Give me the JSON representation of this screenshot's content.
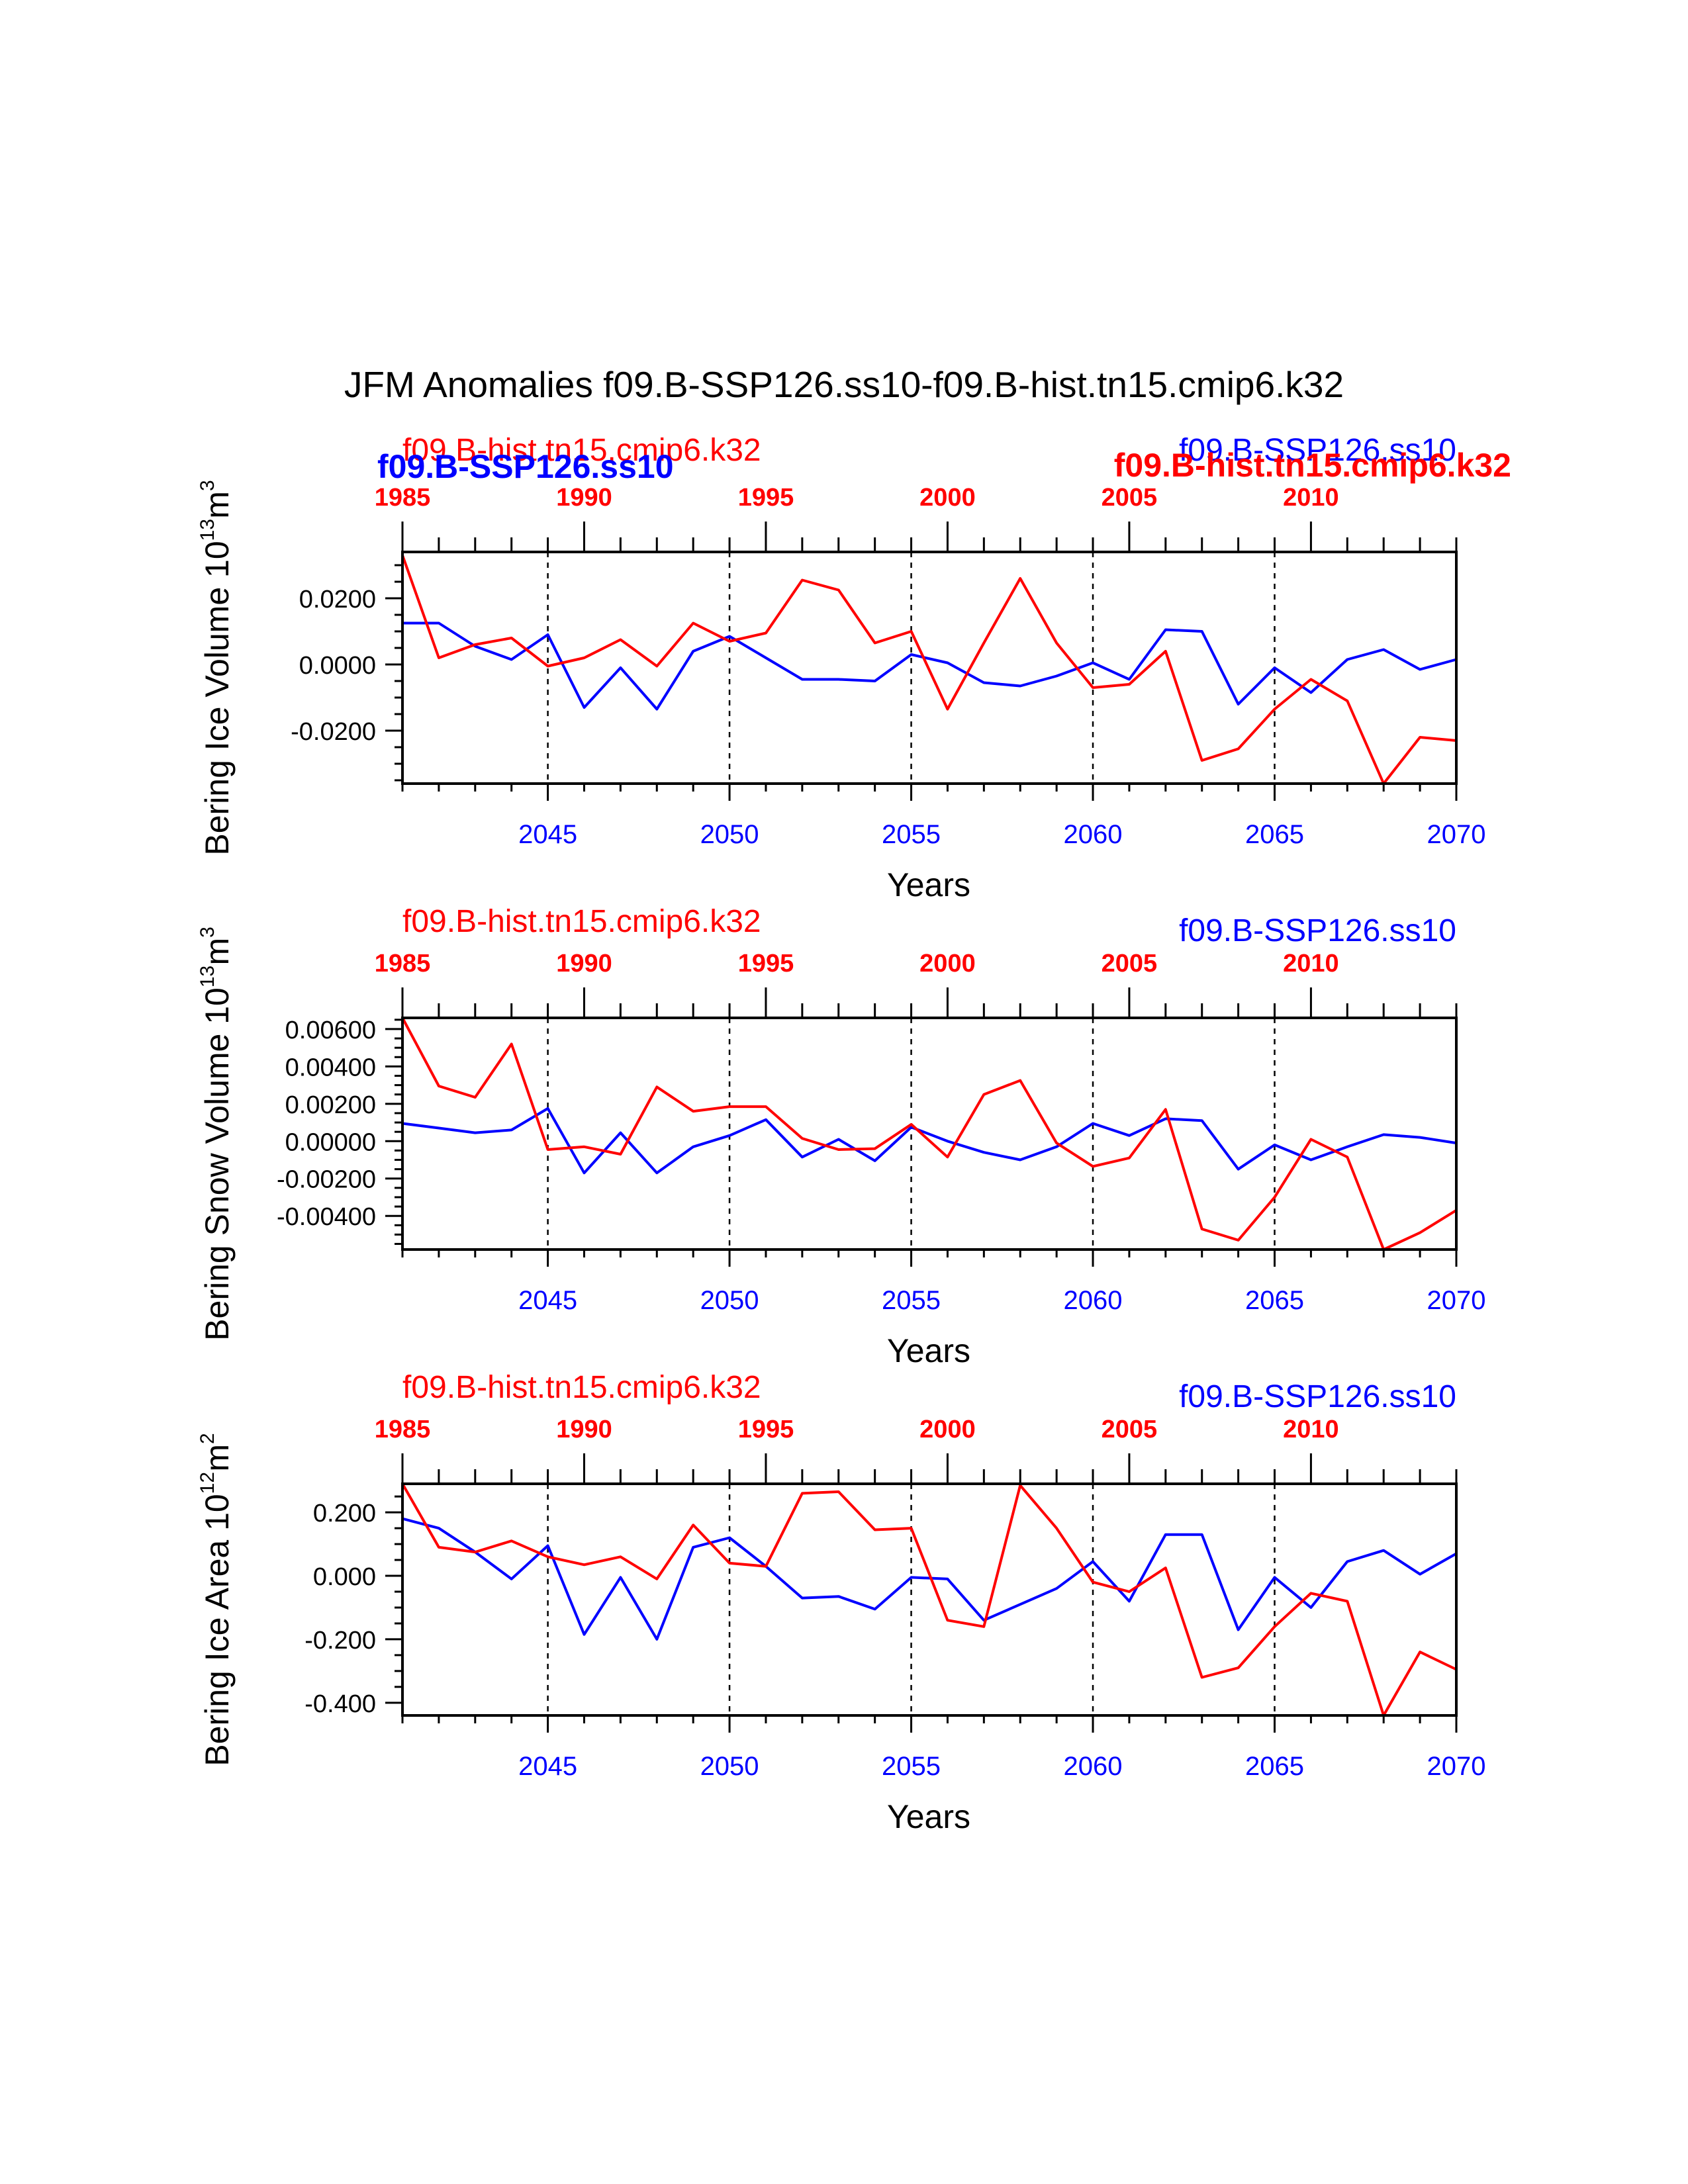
{
  "title": "JFM Anomalies f09.B-SSP126.ss10-f09.B-hist.tn15.cmip6.k32",
  "colors": {
    "ssp": "#0000ff",
    "hist": "#ff0000",
    "axis": "#000000"
  },
  "header_overlap": {
    "left_small": "f09.B-hist.tn15.cmip6.k32",
    "left_bold": "f09.B-SSP126.ss10",
    "right_small": "f09.B-SSP126.ss10",
    "right_bold": "f09.B-hist.tn15.cmip6.k32"
  },
  "chart_data": [
    {
      "type": "line",
      "ylabel": "Bering Ice Volume 10^13 m^3",
      "xlabel": "Years",
      "top_left_label": "f09.B-hist.tn15.cmip6.k32",
      "top_right_label": "f09.B-SSP126.ss10",
      "x_bottom": {
        "min": 2041,
        "max": 2070,
        "ticks": [
          "2045",
          "2050",
          "2055",
          "2060",
          "2065",
          "2070"
        ]
      },
      "x_top": {
        "min": 1985,
        "max": 2014,
        "ticks": [
          "1985",
          "1990",
          "1995",
          "2000",
          "2005",
          "2010"
        ]
      },
      "ylim": [
        -0.036,
        0.034
      ],
      "yticks": [
        "0.0200",
        "0.0000",
        "-0.0200"
      ],
      "ytick_values": [
        0.02,
        0.0,
        -0.02
      ],
      "series": [
        {
          "name": "f09.B-SSP126.ss10",
          "color": "#0000ff",
          "values": [
            0.0125,
            0.0125,
            0.0055,
            0.0015,
            0.009,
            -0.013,
            -0.001,
            -0.0135,
            0.004,
            0.0085,
            0.002,
            -0.0045,
            -0.0045,
            -0.005,
            0.003,
            0.0005,
            -0.0055,
            -0.0065,
            -0.0035,
            0.0005,
            -0.0045,
            0.0105,
            0.01,
            -0.012,
            -0.001,
            -0.0085,
            0.0015,
            0.0045,
            -0.0015,
            0.0015
          ]
        },
        {
          "name": "f09.B-hist.tn15.cmip6.k32",
          "color": "#ff0000",
          "values": [
            0.033,
            0.002,
            0.006,
            0.008,
            -0.0005,
            0.002,
            0.0075,
            -0.0005,
            0.0125,
            0.007,
            0.0095,
            0.0255,
            0.0225,
            0.0065,
            0.01,
            -0.0135,
            0.0065,
            0.026,
            0.0065,
            -0.007,
            -0.006,
            0.004,
            -0.029,
            -0.0255,
            -0.0135,
            -0.0045,
            -0.011,
            -0.036,
            -0.022,
            -0.023
          ]
        }
      ]
    },
    {
      "type": "line",
      "ylabel": "Bering Snow Volume 10^13 m^3",
      "xlabel": "Years",
      "top_left_label": "f09.B-hist.tn15.cmip6.k32",
      "top_right_label": "f09.B-SSP126.ss10",
      "x_bottom": {
        "min": 2041,
        "max": 2070,
        "ticks": [
          "2045",
          "2050",
          "2055",
          "2060",
          "2065",
          "2070"
        ]
      },
      "x_top": {
        "min": 1985,
        "max": 2014,
        "ticks": [
          "1985",
          "1990",
          "1995",
          "2000",
          "2005",
          "2010"
        ]
      },
      "ylim": [
        -0.0058,
        0.0066
      ],
      "yticks": [
        "0.00600",
        "0.00400",
        "0.00200",
        "0.00000",
        "-0.00200",
        "-0.00400"
      ],
      "ytick_values": [
        0.006,
        0.004,
        0.002,
        0.0,
        -0.002,
        -0.004
      ],
      "series": [
        {
          "name": "f09.B-SSP126.ss10",
          "color": "#0000ff",
          "values": [
            0.00095,
            0.0007,
            0.00045,
            0.0006,
            0.00175,
            -0.0017,
            0.00045,
            -0.0017,
            -0.0003,
            0.0003,
            0.00115,
            -0.00085,
            0.0001,
            -0.00105,
            0.00075,
            0.0,
            -0.0006,
            -0.001,
            -0.0003,
            0.00095,
            0.0003,
            0.0012,
            0.0011,
            -0.0015,
            -0.0002,
            -0.001,
            -0.0003,
            0.00035,
            0.0002,
            -0.0001
          ]
        },
        {
          "name": "f09.B-hist.tn15.cmip6.k32",
          "color": "#ff0000",
          "values": [
            0.0066,
            0.00295,
            0.00235,
            0.0052,
            -0.00045,
            -0.0003,
            -0.0007,
            0.0029,
            0.0016,
            0.00185,
            0.00185,
            0.00015,
            -0.00045,
            -0.0004,
            0.0009,
            -0.00085,
            0.0025,
            0.00325,
            -0.0001,
            -0.00135,
            -0.0009,
            0.0017,
            -0.0047,
            -0.0053,
            -0.003,
            0.0001,
            -0.00085,
            -0.0058,
            -0.0049,
            -0.0037
          ]
        }
      ]
    },
    {
      "type": "line",
      "ylabel": "Bering Ice Area 10^12 m^2",
      "xlabel": "Years",
      "top_left_label": "f09.B-hist.tn15.cmip6.k32",
      "top_right_label": "f09.B-SSP126.ss10",
      "x_bottom": {
        "min": 2041,
        "max": 2070,
        "ticks": [
          "2045",
          "2050",
          "2055",
          "2060",
          "2065",
          "2070"
        ]
      },
      "x_top": {
        "min": 1985,
        "max": 2014,
        "ticks": [
          "1985",
          "1990",
          "1995",
          "2000",
          "2005",
          "2010"
        ]
      },
      "ylim": [
        -0.44,
        0.29
      ],
      "yticks": [
        "0.200",
        "0.000",
        "-0.200",
        "-0.400"
      ],
      "ytick_values": [
        0.2,
        0.0,
        -0.2,
        -0.4
      ],
      "series": [
        {
          "name": "f09.B-SSP126.ss10",
          "color": "#0000ff",
          "values": [
            0.18,
            0.15,
            0.075,
            -0.01,
            0.095,
            -0.185,
            -0.005,
            -0.2,
            0.09,
            0.12,
            0.03,
            -0.07,
            -0.065,
            -0.105,
            -0.005,
            -0.01,
            -0.14,
            -0.09,
            -0.04,
            0.045,
            -0.08,
            0.13,
            0.13,
            -0.17,
            -0.005,
            -0.1,
            0.045,
            0.08,
            0.005,
            0.07
          ]
        },
        {
          "name": "f09.B-hist.tn15.cmip6.k32",
          "color": "#ff0000",
          "values": [
            0.29,
            0.09,
            0.075,
            0.11,
            0.06,
            0.035,
            0.06,
            -0.01,
            0.16,
            0.04,
            0.03,
            0.26,
            0.265,
            0.145,
            0.15,
            -0.14,
            -0.16,
            0.285,
            0.15,
            -0.02,
            -0.05,
            0.025,
            -0.32,
            -0.29,
            -0.16,
            -0.055,
            -0.08,
            -0.44,
            -0.24,
            -0.295
          ]
        }
      ]
    }
  ]
}
